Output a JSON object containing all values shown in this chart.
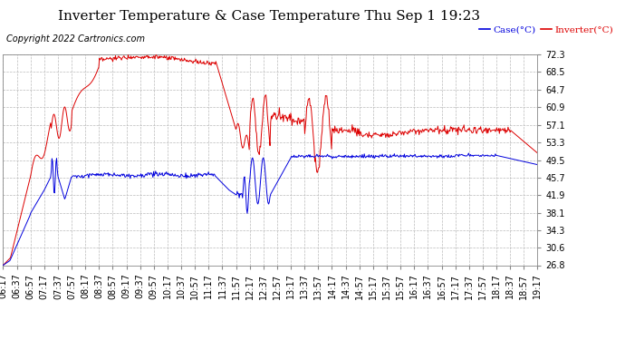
{
  "title": "Inverter Temperature & Case Temperature Thu Sep 1 19:23",
  "copyright": "Copyright 2022 Cartronics.com",
  "legend_case": "Case(°C)",
  "legend_inverter": "Inverter(°C)",
  "yticks": [
    26.8,
    30.6,
    34.3,
    38.1,
    41.9,
    45.7,
    49.5,
    53.3,
    57.1,
    60.9,
    64.7,
    68.5,
    72.3
  ],
  "ymin": 26.8,
  "ymax": 72.3,
  "xtick_labels": [
    "06:17",
    "06:37",
    "06:57",
    "07:17",
    "07:37",
    "07:57",
    "08:17",
    "08:37",
    "08:57",
    "09:17",
    "09:37",
    "09:57",
    "10:17",
    "10:37",
    "10:57",
    "11:17",
    "11:37",
    "11:57",
    "12:17",
    "12:37",
    "12:57",
    "13:17",
    "13:37",
    "13:57",
    "14:17",
    "14:37",
    "14:57",
    "15:17",
    "15:37",
    "15:57",
    "16:17",
    "16:37",
    "16:57",
    "17:17",
    "17:37",
    "17:57",
    "18:17",
    "18:37",
    "18:57",
    "19:17"
  ],
  "bg_color": "#ffffff",
  "grid_color": "#bbbbbb",
  "case_color": "#0000dd",
  "inverter_color": "#dd0000",
  "title_fontsize": 11,
  "axis_fontsize": 7,
  "copyright_fontsize": 7
}
